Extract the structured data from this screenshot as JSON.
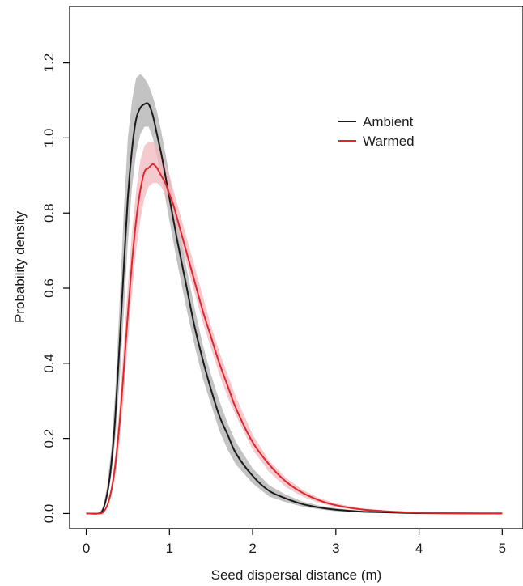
{
  "chart_data": {
    "type": "line",
    "title": "",
    "xlabel": "Seed dispersal distance (m)",
    "ylabel": "Probability density",
    "xlim": [
      -0.2,
      5.25
    ],
    "ylim": [
      -0.04,
      1.35
    ],
    "xticks": [
      0,
      1,
      2,
      3,
      4,
      5
    ],
    "xtick_labels": [
      "0",
      "1",
      "2",
      "3",
      "4",
      "5"
    ],
    "yticks": [
      0.0,
      0.2,
      0.4,
      0.6,
      0.8,
      1.0,
      1.2
    ],
    "ytick_labels": [
      "0.0",
      "0.2",
      "0.4",
      "0.6",
      "0.8",
      "1.0",
      "1.2"
    ],
    "grid": false,
    "legend_position": "top-right",
    "x": [
      0,
      0.15,
      0.2,
      0.25,
      0.3,
      0.35,
      0.4,
      0.45,
      0.5,
      0.55,
      0.6,
      0.65,
      0.7,
      0.75,
      0.8,
      0.85,
      0.9,
      0.95,
      1.0,
      1.05,
      1.1,
      1.2,
      1.3,
      1.4,
      1.5,
      1.6,
      1.7,
      1.8,
      2.0,
      2.2,
      2.4,
      2.6,
      2.8,
      3.0,
      3.3,
      3.6,
      4.0,
      4.5,
      5.0
    ],
    "series": [
      {
        "name": "Ambient",
        "color": "#1a1a1a",
        "band_color": "#bdbdbd",
        "values": [
          0,
          0,
          0.01,
          0.05,
          0.13,
          0.26,
          0.45,
          0.65,
          0.84,
          0.97,
          1.05,
          1.08,
          1.09,
          1.09,
          1.06,
          1.01,
          0.96,
          0.9,
          0.84,
          0.78,
          0.72,
          0.61,
          0.5,
          0.41,
          0.33,
          0.26,
          0.21,
          0.16,
          0.1,
          0.06,
          0.04,
          0.025,
          0.016,
          0.01,
          0.005,
          0.003,
          0.001,
          0.0004,
          0
        ],
        "lower": [
          0,
          0,
          0.008,
          0.04,
          0.1,
          0.2,
          0.35,
          0.53,
          0.72,
          0.87,
          0.96,
          1.01,
          1.03,
          1.03,
          1.0,
          0.95,
          0.9,
          0.84,
          0.78,
          0.72,
          0.66,
          0.55,
          0.45,
          0.36,
          0.29,
          0.22,
          0.17,
          0.13,
          0.08,
          0.045,
          0.03,
          0.018,
          0.011,
          0.006,
          0.003,
          0.0015,
          0.0005,
          0.0002,
          0
        ],
        "upper": [
          0,
          0,
          0.015,
          0.07,
          0.17,
          0.33,
          0.56,
          0.8,
          1.0,
          1.1,
          1.16,
          1.17,
          1.16,
          1.14,
          1.11,
          1.07,
          1.02,
          0.96,
          0.9,
          0.84,
          0.78,
          0.66,
          0.55,
          0.45,
          0.37,
          0.3,
          0.24,
          0.19,
          0.12,
          0.075,
          0.05,
          0.032,
          0.021,
          0.014,
          0.007,
          0.004,
          0.0015,
          0.0006,
          0
        ]
      },
      {
        "name": "Warmed",
        "color": "#e0262c",
        "band_color": "#f2b8bd",
        "values": [
          0,
          0,
          0.003,
          0.02,
          0.06,
          0.13,
          0.24,
          0.38,
          0.53,
          0.67,
          0.78,
          0.86,
          0.91,
          0.92,
          0.93,
          0.92,
          0.9,
          0.88,
          0.85,
          0.82,
          0.78,
          0.7,
          0.62,
          0.54,
          0.47,
          0.4,
          0.34,
          0.28,
          0.19,
          0.13,
          0.085,
          0.055,
          0.035,
          0.022,
          0.011,
          0.006,
          0.002,
          0.0006,
          0
        ],
        "lower": [
          0,
          0,
          0.002,
          0.015,
          0.045,
          0.1,
          0.19,
          0.31,
          0.46,
          0.59,
          0.7,
          0.78,
          0.84,
          0.87,
          0.88,
          0.88,
          0.87,
          0.85,
          0.82,
          0.79,
          0.75,
          0.67,
          0.59,
          0.51,
          0.44,
          0.37,
          0.31,
          0.26,
          0.17,
          0.11,
          0.07,
          0.045,
          0.028,
          0.017,
          0.008,
          0.004,
          0.0015,
          0.0004,
          0
        ],
        "upper": [
          0,
          0,
          0.004,
          0.025,
          0.07,
          0.16,
          0.29,
          0.45,
          0.61,
          0.75,
          0.86,
          0.94,
          0.98,
          0.99,
          0.99,
          0.98,
          0.96,
          0.93,
          0.9,
          0.86,
          0.82,
          0.74,
          0.66,
          0.58,
          0.5,
          0.43,
          0.37,
          0.31,
          0.21,
          0.14,
          0.095,
          0.063,
          0.041,
          0.027,
          0.014,
          0.008,
          0.003,
          0.001,
          0
        ]
      }
    ]
  }
}
